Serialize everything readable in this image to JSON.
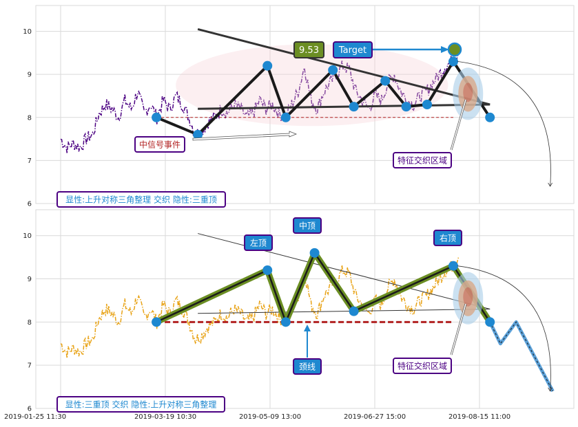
{
  "chart_data": [
    {
      "type": "line",
      "panel": "top",
      "ylim": [
        6,
        10.6
      ],
      "yticks": [
        6,
        7,
        8,
        9,
        10
      ],
      "x_range": [
        0,
        1000
      ],
      "grid": true,
      "price_color": "#4b0082",
      "series": [
        {
          "values": [
            7.5,
            7.3,
            7.4,
            7.3,
            7.5,
            7.6,
            8.1,
            8.3,
            8.2,
            8.0,
            8.4,
            8.2,
            8.6,
            8.1,
            8.3,
            8.0,
            8.4,
            8.2,
            8.5,
            8.3,
            8.0,
            7.6,
            7.7,
            7.9,
            8.0,
            8.2,
            8.1,
            8.3,
            8.2,
            8.0,
            8.1,
            8.4,
            8.2,
            8.3,
            8.1,
            8.0,
            8.3,
            8.6,
            9.2,
            8.4,
            8.2,
            8.6,
            8.8,
            9.0,
            9.2,
            9.1,
            8.6,
            8.4,
            8.2,
            8.5,
            8.4,
            8.8,
            9.0,
            8.6,
            8.4,
            8.3,
            8.5,
            8.6,
            8.8,
            9.0,
            9.2,
            9.3,
            9.5
          ]
        }
      ],
      "pattern": {
        "points": [
          [
            183,
            8.0
          ],
          [
            262,
            7.6
          ],
          [
            395,
            9.2
          ],
          [
            430,
            8.0
          ],
          [
            520,
            9.1
          ],
          [
            560,
            8.25
          ],
          [
            620,
            8.85
          ],
          [
            660,
            8.25
          ],
          [
            700,
            8.3
          ],
          [
            750,
            9.3
          ],
          [
            820,
            8.0
          ]
        ],
        "upper_trendline": [
          [
            262,
            10.05
          ],
          [
            820,
            8.3
          ]
        ],
        "lower_trendline": [
          [
            262,
            8.2
          ],
          [
            820,
            8.3
          ]
        ],
        "neckline": [
          [
            183,
            8.0
          ],
          [
            750,
            8.0
          ]
        ],
        "ellipse": {
          "cx": 480,
          "cy": 8.75,
          "rx": 260,
          "ry": 0.95
        }
      },
      "annotations": {
        "price_label": "9.53",
        "target_label": "Target",
        "event_label": "中信号事件",
        "zone_label": "特征交织区域",
        "summary": "显性:上升对称三角整理 交织 隐性:三重顶"
      }
    },
    {
      "type": "line",
      "panel": "bottom",
      "ylim": [
        6,
        10.6
      ],
      "yticks": [
        6,
        7,
        8,
        9,
        10
      ],
      "x_range": [
        0,
        1000
      ],
      "grid": true,
      "price_color": "#e8a317",
      "series": [
        {
          "values": [
            7.5,
            7.3,
            7.4,
            7.3,
            7.5,
            7.6,
            8.1,
            8.3,
            8.2,
            8.0,
            8.4,
            8.2,
            8.6,
            8.1,
            8.3,
            8.0,
            8.4,
            8.2,
            8.5,
            8.3,
            8.0,
            7.6,
            7.7,
            7.9,
            8.0,
            8.2,
            8.1,
            8.3,
            8.2,
            8.0,
            8.1,
            8.4,
            8.2,
            8.3,
            8.1,
            8.0,
            8.3,
            8.6,
            9.2,
            8.4,
            8.2,
            8.6,
            8.8,
            9.0,
            9.2,
            9.1,
            8.6,
            8.4,
            8.2,
            8.5,
            8.4,
            8.8,
            9.0,
            8.6,
            8.4,
            8.3,
            8.5,
            8.6,
            8.8,
            9.0,
            9.2,
            9.3,
            9.5
          ]
        }
      ],
      "pattern": {
        "points": [
          [
            183,
            8.0
          ],
          [
            395,
            9.2
          ],
          [
            430,
            8.0
          ],
          [
            485,
            9.6
          ],
          [
            560,
            8.25
          ],
          [
            750,
            9.3
          ],
          [
            820,
            8.0
          ]
        ],
        "projection": [
          [
            820,
            8.0
          ],
          [
            840,
            7.5
          ],
          [
            870,
            8.0
          ],
          [
            940,
            6.4
          ]
        ],
        "upper_trendline": [
          [
            262,
            10.05
          ],
          [
            820,
            8.3
          ]
        ],
        "lower_trendline": [
          [
            262,
            8.2
          ],
          [
            820,
            8.3
          ]
        ],
        "neckline": [
          [
            183,
            8.0
          ],
          [
            750,
            8.0
          ]
        ]
      },
      "annotations": {
        "left_top": "左顶",
        "mid_top": "中顶",
        "right_top": "右顶",
        "neckline_label": "颈线",
        "zone_label": "特征交织区域",
        "summary": "显性:三重顶 交织 隐性:上升对称三角整理"
      }
    }
  ],
  "x_tick_labels": [
    {
      "pos": 0,
      "label": "2019-01-25 11:30"
    },
    {
      "pos": 200,
      "label": "2019-03-19 10:30"
    },
    {
      "pos": 400,
      "label": "2019-05-09 13:00"
    },
    {
      "pos": 600,
      "label": "2019-06-27 15:00"
    },
    {
      "pos": 800,
      "label": "2019-08-15 11:00"
    }
  ],
  "colors": {
    "grid": "#d9d9d9",
    "pattern_line": "#1a1a1a",
    "marker": "#1e88d0",
    "label_bg": "#1e88d0",
    "label_border": "#4b0082",
    "price_label_bg": "#6b8e23",
    "neckline": "#b22222",
    "highlight": "#6b8e23",
    "zone": "#a8cde8"
  }
}
